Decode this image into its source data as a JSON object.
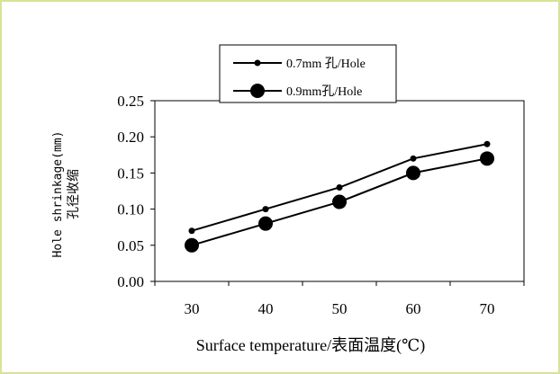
{
  "chart_data": {
    "type": "line",
    "x": [
      30,
      40,
      50,
      60,
      70
    ],
    "series": [
      {
        "name": "0.7mm 孔/Hole",
        "values": [
          0.07,
          0.1,
          0.13,
          0.17,
          0.19
        ],
        "marker": "small"
      },
      {
        "name": "0.9mm孔/Hole",
        "values": [
          0.05,
          0.08,
          0.11,
          0.15,
          0.17
        ],
        "marker": "large"
      }
    ],
    "x_tick_labels": [
      "30",
      "40",
      "50",
      "60",
      "70"
    ],
    "y_tick_labels": [
      "0.00",
      "0.05",
      "0.10",
      "0.15",
      "0.20",
      "0.25"
    ],
    "xlabel": "Surface temperature/表面温度(℃)",
    "ylabel_en": "Hole shrinkage(mm)",
    "ylabel_zh": "孔径收缩",
    "xlim": [
      25,
      75
    ],
    "ylim": [
      0,
      0.25
    ],
    "legend_position": "top",
    "grid": false,
    "colors": {
      "line": "#000000",
      "frame_border": "#d8e29a"
    }
  }
}
